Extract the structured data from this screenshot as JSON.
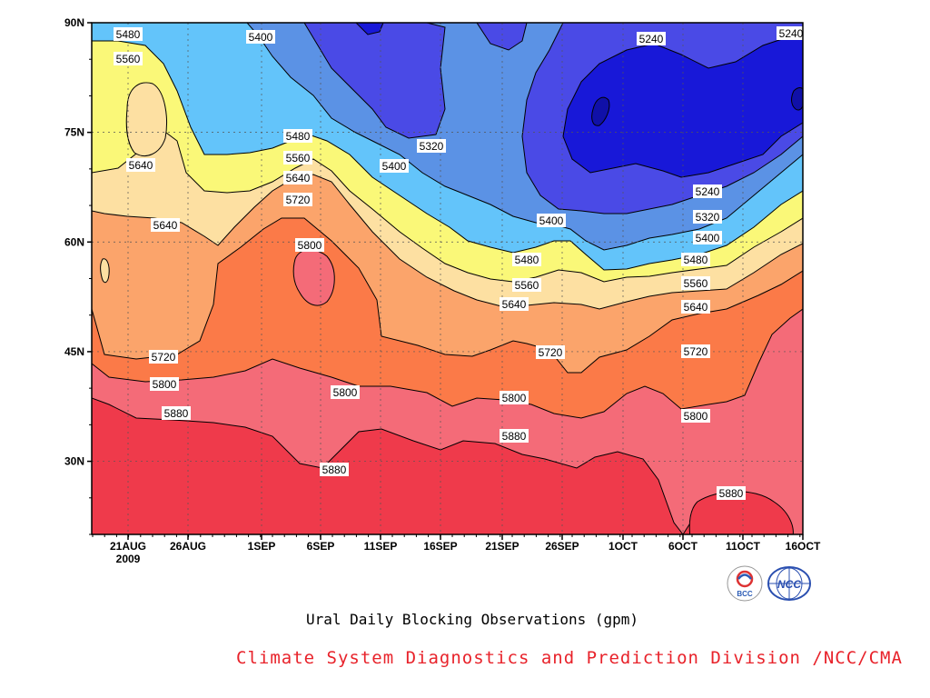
{
  "chart_data": {
    "type": "contour",
    "title": "",
    "xlabel": "",
    "ylabel": "",
    "x_ticks": [
      "21AUG",
      "26AUG",
      "1SEP",
      "6SEP",
      "11SEP",
      "16SEP",
      "21SEP",
      "26SEP",
      "1OCT",
      "6OCT",
      "11OCT",
      "16OCT"
    ],
    "x_year_label": "2009",
    "x_range": [
      "18AUG 2009",
      "16OCT 2009"
    ],
    "y_ticks": [
      "30N",
      "45N",
      "60N",
      "75N",
      "90N"
    ],
    "y_range": [
      20,
      90
    ],
    "grid": true,
    "units": "gpm",
    "contour_levels": [
      5240,
      5320,
      5400,
      5480,
      5560,
      5640,
      5720,
      5800,
      5880
    ],
    "shading_colors": {
      "below_5240": "#1818d8",
      "5240_5320": "#4a4ae6",
      "5320_5400": "#5b92e5",
      "5400_5480": "#63c4fa",
      "5480_5560": "#faf878",
      "5560_5640": "#fde0a2",
      "5640_5720": "#fba46b",
      "5720_5800": "#fb7a48",
      "5800_5880": "#f46b78",
      "above_5880": "#ef3a4b"
    },
    "contour_labels": [
      "5480",
      "5560",
      "5640",
      "5640",
      "5400",
      "5480",
      "5560",
      "5640",
      "5720",
      "5800",
      "5320",
      "5400",
      "5400",
      "5480",
      "5560",
      "5640",
      "5720",
      "5720",
      "5800",
      "5880",
      "5800",
      "5880",
      "5240",
      "5240",
      "5240",
      "5320",
      "5400",
      "5480",
      "5560",
      "5640",
      "5720",
      "5800",
      "5880",
      "5800",
      "5880"
    ]
  },
  "caption": "Ural Daily Blocking Observations (gpm)",
  "credit": "Climate System Diagnostics and Prediction Division /NCC/CMA",
  "logos": {
    "bcc": {
      "text": "BCC",
      "icon": "bcc-logo-icon"
    },
    "ncc": {
      "text": "NCC",
      "icon": "ncc-logo-icon"
    }
  }
}
